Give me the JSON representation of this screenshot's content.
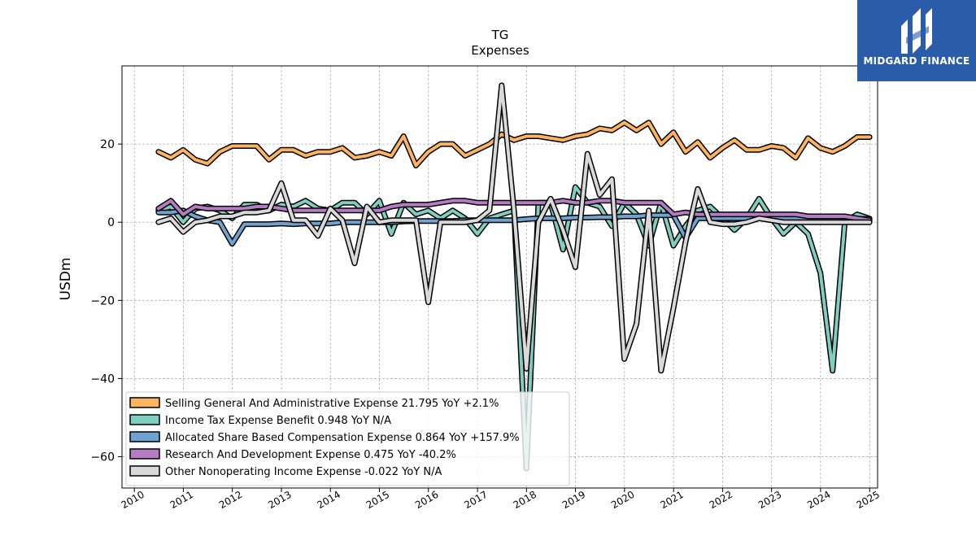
{
  "brand": {
    "name": "MIDGARD FINANCE",
    "color": "#2a5caa"
  },
  "chart_data": {
    "type": "line",
    "title": "TG",
    "subtitle": "Expenses",
    "ylabel": "USDm",
    "xlabel": "",
    "x_range": [
      "2009-10-01",
      "2025-03-01"
    ],
    "ylim": [
      -68,
      40
    ],
    "yticks": [
      -60,
      -40,
      -20,
      0,
      20
    ],
    "xticks": [
      "2010",
      "2011",
      "2012",
      "2013",
      "2014",
      "2015",
      "2016",
      "2017",
      "2018",
      "2019",
      "2020",
      "2021",
      "2022",
      "2023",
      "2024",
      "2025"
    ],
    "grid": true,
    "legend_position": "lower-left",
    "x": [
      "2010-06-30",
      "2010-09-30",
      "2010-12-31",
      "2011-03-31",
      "2011-06-30",
      "2011-09-30",
      "2011-12-31",
      "2012-03-31",
      "2012-06-30",
      "2012-09-30",
      "2012-12-31",
      "2013-03-31",
      "2013-06-30",
      "2013-09-30",
      "2013-12-31",
      "2014-03-31",
      "2014-06-30",
      "2014-09-30",
      "2014-12-31",
      "2015-03-31",
      "2015-06-30",
      "2015-09-30",
      "2015-12-31",
      "2016-03-31",
      "2016-06-30",
      "2016-09-30",
      "2016-12-31",
      "2017-03-31",
      "2017-06-30",
      "2017-09-30",
      "2017-12-31",
      "2018-03-31",
      "2018-06-30",
      "2018-09-30",
      "2018-12-31",
      "2019-03-31",
      "2019-06-30",
      "2019-09-30",
      "2019-12-31",
      "2020-03-31",
      "2020-06-30",
      "2020-09-30",
      "2020-12-31",
      "2021-03-31",
      "2021-06-30",
      "2021-09-30",
      "2021-12-31",
      "2022-03-31",
      "2022-06-30",
      "2022-09-30",
      "2022-12-31",
      "2023-03-31",
      "2023-06-30",
      "2023-09-30",
      "2023-12-31",
      "2024-03-31",
      "2024-06-30",
      "2024-09-30",
      "2024-12-31"
    ],
    "series": [
      {
        "name": "Selling General And Administrative Expense",
        "legend": "Selling General And Administrative Expense  21.795 YoY +2.1%",
        "color": "#fdb462",
        "values": [
          18,
          16.5,
          18.5,
          16,
          15,
          18,
          19.5,
          19.5,
          19.5,
          16,
          18.5,
          18.5,
          17,
          18,
          18,
          19,
          16.5,
          17,
          18,
          17,
          22,
          14.5,
          18,
          20,
          20,
          17,
          18.5,
          20,
          22.5,
          21,
          22,
          22,
          21.5,
          21,
          22,
          22.5,
          24,
          23.5,
          25.5,
          23.5,
          25.5,
          20,
          23,
          18,
          20.5,
          16.5,
          19,
          21,
          18.5,
          18.5,
          19.5,
          19,
          16.5,
          21.5,
          19,
          18,
          19.5,
          21.795,
          21.795
        ]
      },
      {
        "name": "Income Tax Expense Benefit",
        "legend": "Income Tax Expense Benefit  0.948 YoY N/A",
        "color": "#80cdc1",
        "values": [
          3,
          4,
          0,
          3.5,
          4,
          3,
          1,
          4.5,
          4.5,
          3,
          4.5,
          4,
          5.5,
          3.5,
          3,
          5,
          5,
          2,
          5.5,
          -3,
          5,
          2,
          3,
          1,
          3,
          1,
          -3,
          1,
          2,
          3,
          -63,
          5,
          5,
          -7,
          9,
          5,
          4,
          -1,
          5,
          2,
          -6,
          5,
          -6,
          -1,
          3,
          4,
          1,
          -2,
          1,
          6,
          1,
          -3,
          0,
          -3,
          -13,
          -38,
          0,
          2,
          0.948
        ]
      },
      {
        "name": "Allocated Share Based Compensation Expense",
        "legend": "Allocated Share Based Compensation Expense  0.864 YoY +157.9%",
        "color": "#6fa3d2",
        "values": [
          2.5,
          2.5,
          3,
          1.5,
          0.5,
          0,
          -5.5,
          -0.5,
          -0.5,
          -0.5,
          -0.3,
          -0.5,
          -0.3,
          -0.3,
          -0.3,
          0,
          0,
          0,
          0,
          0,
          0.2,
          0.3,
          0.3,
          0.3,
          0.3,
          0.5,
          0.5,
          0.5,
          0.5,
          0.5,
          0.8,
          1,
          1,
          1,
          1.2,
          1.2,
          1.3,
          1.3,
          1.5,
          1.5,
          1.8,
          1.8,
          1.8,
          -4,
          1,
          1,
          1,
          1,
          1,
          1,
          1,
          1,
          1,
          1,
          1,
          1,
          0.864,
          0.864,
          0.864
        ]
      },
      {
        "name": "Research And Development Expense",
        "legend": "Research And Development Expense  0.475 YoY -40.2%",
        "color": "#b57bc3",
        "values": [
          3.5,
          5.5,
          2,
          4,
          3.5,
          3.5,
          3.5,
          3.5,
          4,
          4,
          3.5,
          3,
          3,
          3,
          3,
          3,
          3,
          3,
          3,
          4,
          4.5,
          4.5,
          4.5,
          5,
          5.5,
          5.5,
          5,
          5,
          5,
          5,
          5,
          5,
          5,
          5.5,
          5,
          5,
          5.5,
          5.5,
          5,
          5,
          5,
          5,
          2,
          2.5,
          2,
          2,
          2,
          2,
          2,
          2,
          2,
          2,
          2,
          1.5,
          1.5,
          1.5,
          1.5,
          1,
          0.475
        ]
      },
      {
        "name": "Other Nonoperating Income Expense",
        "legend": "Other Nonoperating Income Expense  -0.022 YoY N/A",
        "color": "#d9d9d9",
        "values": [
          0,
          1,
          -2.5,
          0,
          0.5,
          1.5,
          1.5,
          2.5,
          2.5,
          3,
          10,
          0.5,
          0.5,
          -3.5,
          3.5,
          0.5,
          -10.5,
          4,
          0,
          0.5,
          0.5,
          0.5,
          -20.5,
          0,
          0,
          0,
          0.5,
          3,
          35,
          3,
          -37.5,
          0,
          6,
          -2,
          -11.5,
          17.5,
          7,
          11,
          -35,
          -26,
          3,
          -38,
          -22,
          -5,
          8.5,
          0,
          -0.5,
          -0.5,
          0,
          1,
          0.5,
          0,
          0,
          0,
          0,
          0,
          0,
          0,
          -0.022
        ]
      }
    ]
  }
}
